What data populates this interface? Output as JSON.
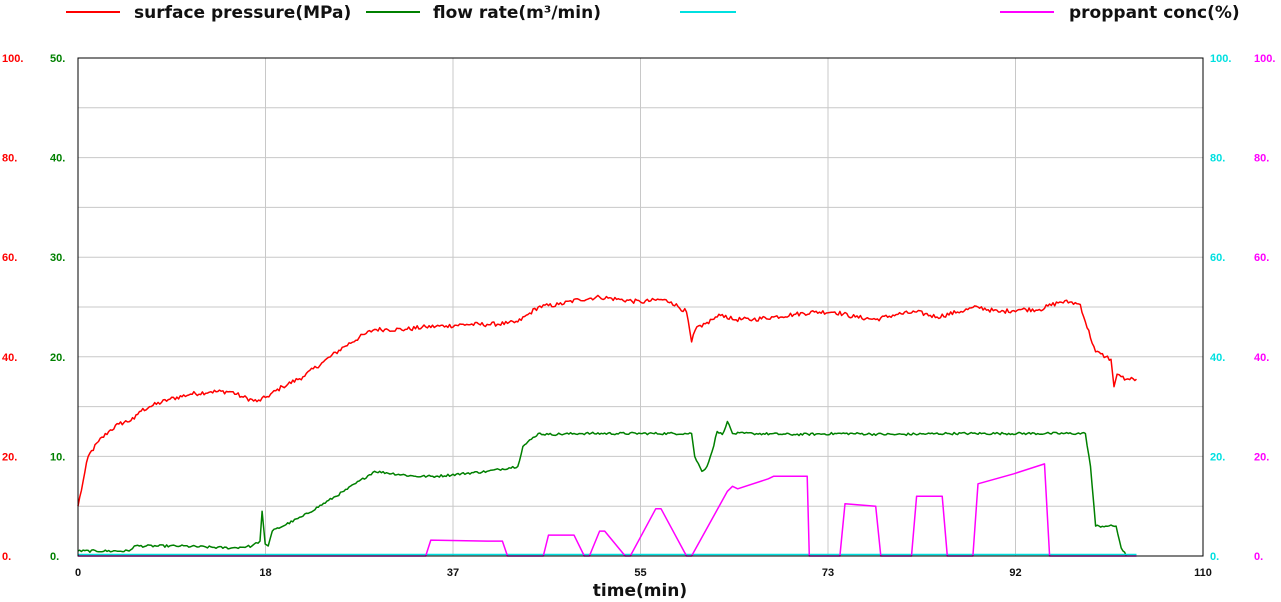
{
  "chart_data": {
    "type": "line",
    "xlabel": "time(min)",
    "x_ticks": [
      "0",
      "18",
      "37",
      "55",
      "73",
      "92",
      "110"
    ],
    "xlim": [
      0,
      110
    ],
    "grid": true,
    "legend_position": "top",
    "axes": [
      {
        "id": "pressure",
        "side": "left",
        "color": "#ff0000",
        "range": [
          0,
          100
        ],
        "ticks": [
          "0.",
          "20.",
          "40.",
          "60.",
          "80.",
          "100."
        ]
      },
      {
        "id": "flow",
        "side": "left",
        "color": "#008000",
        "range": [
          0,
          50
        ],
        "ticks": [
          "0.",
          "10.",
          "20.",
          "30.",
          "40.",
          "50."
        ]
      },
      {
        "id": "cyan",
        "side": "right",
        "color": "#00e0e0",
        "range": [
          0,
          100
        ],
        "ticks": [
          "0.",
          "20.",
          "40.",
          "60.",
          "80.",
          "100."
        ]
      },
      {
        "id": "conc",
        "side": "right",
        "color": "#ff00ff",
        "range": [
          0,
          100
        ],
        "ticks": [
          "0.",
          "20.",
          "40.",
          "60.",
          "80.",
          "100."
        ]
      }
    ],
    "series": [
      {
        "name": "surface pressure(MPa)",
        "axis": "pressure",
        "color": "#ff0000",
        "x": [
          0,
          0.5,
          1,
          2,
          3,
          4,
          5.5,
          6,
          7,
          9,
          11,
          13,
          15,
          16,
          17.5,
          18.5,
          20,
          22,
          24,
          26,
          28,
          29,
          30,
          32,
          34,
          36,
          38,
          40,
          42,
          43,
          44,
          45,
          47,
          49,
          51,
          53,
          55,
          57,
          58,
          59.5,
          60,
          60.5,
          61,
          62,
          63,
          64,
          66,
          68,
          70,
          72,
          74,
          76,
          78,
          80,
          82,
          84,
          86,
          88,
          90,
          92,
          94,
          96,
          97,
          98,
          98.5,
          99.5,
          100.5,
          101,
          101.3,
          101.6,
          102,
          102.5,
          103.5
        ],
        "y": [
          10,
          15,
          20,
          23,
          25,
          26.5,
          27.5,
          29,
          30,
          31.5,
          32.5,
          33,
          33,
          32,
          31,
          32,
          34,
          36,
          39,
          42,
          44.5,
          45.5,
          45.5,
          45.5,
          46,
          46.2,
          46.5,
          46.5,
          46.7,
          47,
          48.5,
          50,
          50.5,
          51.5,
          52,
          51.5,
          51,
          51.5,
          51,
          49,
          43,
          46,
          46,
          47.5,
          48.5,
          47.5,
          47.5,
          48,
          48.5,
          49,
          49,
          48,
          47.5,
          48.5,
          49,
          48,
          49,
          50,
          49,
          49.5,
          49.5,
          51,
          51,
          50.5,
          47,
          41,
          40,
          39.5,
          34,
          36.5,
          36,
          35.5,
          35.5
        ]
      },
      {
        "name": "flow rate(m³/min)",
        "axis": "flow",
        "color": "#008000",
        "x": [
          0,
          5,
          5.5,
          10,
          15,
          17,
          17.8,
          18,
          18.3,
          18.6,
          19,
          22,
          26,
          29,
          33,
          35,
          40,
          43,
          43.5,
          45,
          46,
          49,
          55,
          60,
          60.3,
          61,
          61.5,
          62,
          62.5,
          63,
          63.5,
          64,
          66,
          70,
          75,
          80,
          85,
          90,
          95,
          98.5,
          99,
          99.5,
          100.5,
          101.5,
          102,
          102.5
        ],
        "y": [
          0.5,
          0.5,
          1,
          1,
          0.8,
          1,
          1.5,
          4.5,
          1.2,
          1,
          2.5,
          4,
          6.5,
          8.5,
          8,
          8,
          8.5,
          9,
          11,
          12.3,
          12.2,
          12.3,
          12.3,
          12.3,
          10,
          8.5,
          9,
          10.5,
          12.5,
          12.2,
          13.5,
          12.3,
          12.3,
          12.2,
          12.3,
          12.2,
          12.3,
          12.3,
          12.3,
          12.3,
          9,
          3,
          3,
          3,
          0.8,
          0
        ]
      },
      {
        "name": "",
        "axis": "cyan",
        "color": "#00e0e0",
        "x": [
          0,
          103.5
        ],
        "y": [
          0.3,
          0.3
        ]
      },
      {
        "name": "proppant conc(%)",
        "axis": "conc",
        "color": "#ff00ff",
        "x": [
          0,
          34,
          34.5,
          40,
          41.5,
          42,
          45.5,
          46,
          48.5,
          49.5,
          50,
          51,
          51.5,
          53.5,
          54,
          56.5,
          57,
          59.5,
          60,
          63.5,
          64,
          64.5,
          67.5,
          68,
          71.3,
          71.5,
          74.5,
          75,
          78,
          78.5,
          81.5,
          82,
          84.5,
          85,
          87.5,
          88,
          91.5,
          94.5,
          95,
          103.5
        ],
        "y": [
          0,
          0,
          3.2,
          3,
          3,
          0,
          0,
          4.2,
          4.2,
          0,
          0,
          5,
          5,
          0,
          0,
          9.5,
          9.5,
          0,
          0,
          13,
          14,
          13.5,
          15.5,
          16,
          16,
          0,
          0,
          10.5,
          10,
          0,
          0,
          12,
          12,
          0,
          0,
          14.5,
          16.5,
          18.5,
          0,
          0
        ]
      }
    ]
  }
}
